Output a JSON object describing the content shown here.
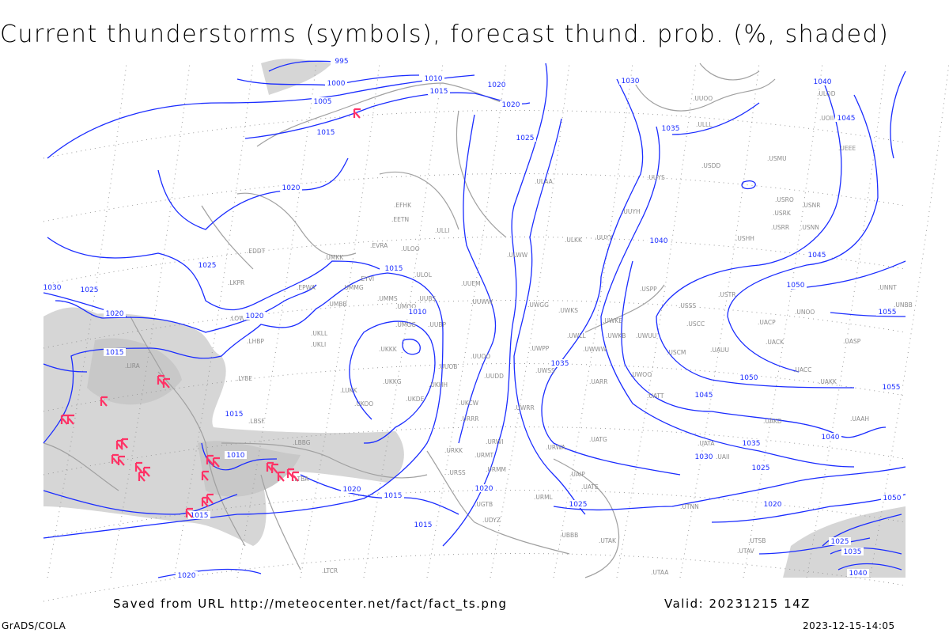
{
  "title": "Current thunderstorms (symbols), forecast thund. prob. (%, shaded)",
  "footer": {
    "saved_from": "Saved from URL http://meteocenter.net/fact/fact_ts.png",
    "valid": "Valid: 20231215 14Z",
    "software": "GrADS/COLA",
    "timestamp": "2023-12-15-14:05"
  },
  "colors": {
    "isobar": "#1a2cff",
    "coastline": "#a0a0a0",
    "shading": "#d6d6d6",
    "storm_symbol": "#ff3366"
  },
  "map": {
    "isobar_labels": [
      "995",
      "1000",
      "1005",
      "1010",
      "1015",
      "1020",
      "1015",
      "1020",
      "1020",
      "1025",
      "1030",
      "1035",
      "1025",
      "1030",
      "1025",
      "1020",
      "1015",
      "1020",
      "1015",
      "1015",
      "1010",
      "1010",
      "1015",
      "1035",
      "1040",
      "1045",
      "1040",
      "1045",
      "1050",
      "1055",
      "1050",
      "1055",
      "1045",
      "1040",
      "1035",
      "1030",
      "1025",
      "1020",
      "1020",
      "1015",
      "1025",
      "1020",
      "1015",
      "1020",
      "1025",
      "1035",
      "1040",
      "1050"
    ],
    "stations": [
      "ULAA",
      "UUYS",
      "UUYH",
      "UUYY",
      "ULKK",
      "ULWW",
      "EFHK",
      "EETN",
      "ULLI",
      "EVRA",
      "ULOO",
      "UMKK",
      "ULOL",
      "UUEM",
      "UUWW",
      "EYVI",
      "UMMG",
      "UMMS",
      "UMOO",
      "UUBS",
      "UMBB",
      "UWGG",
      "UWKS",
      "USPP",
      "UMGG",
      "UUBP",
      "UKKK",
      "UWKE",
      "UWKB",
      "UWUU",
      "UWWW",
      "UWLL",
      "UUOO",
      "UWPP",
      "UUOB",
      "UWSS",
      "UARR",
      "UWOO",
      "UKHH",
      "UKKG",
      "UKOO",
      "UKDE",
      "UKCW",
      "UUDD",
      "UWRR",
      "UATT",
      "ULLL",
      "UUOO",
      "USDD",
      "USMU",
      "USRO",
      "USRK",
      "USNR",
      "USRR",
      "USNN",
      "USHH",
      "USSS",
      "USTR",
      "USCC",
      "UNOO",
      "UACP",
      "UACK",
      "USCM",
      "UAUU",
      "UASP",
      "UACC",
      "UAKK",
      "UAKD",
      "UAAH",
      "UATG",
      "UATA",
      "UATE",
      "UAIP",
      "UAII",
      "UTNN",
      "LKPR",
      "EPWA",
      "EDDT",
      "LOWW",
      "LHBP",
      "LYBE",
      "LIRA",
      "LBSF",
      "LBBG",
      "LTBA",
      "UKLL",
      "UKLI",
      "LUKK",
      "URRR",
      "URKK",
      "URWI",
      "URWA",
      "URMT",
      "URMM",
      "URML",
      "UBBB",
      "UTAK",
      "UTSB",
      "UTAV",
      "UTAA",
      "LTCR",
      "UDYZ",
      "UGTB",
      "URSS",
      "UNNT",
      "UNBB",
      "ULOD",
      "UOII",
      "UEEE"
    ],
    "storm_symbol_icon": "thunderstorm-symbol"
  }
}
